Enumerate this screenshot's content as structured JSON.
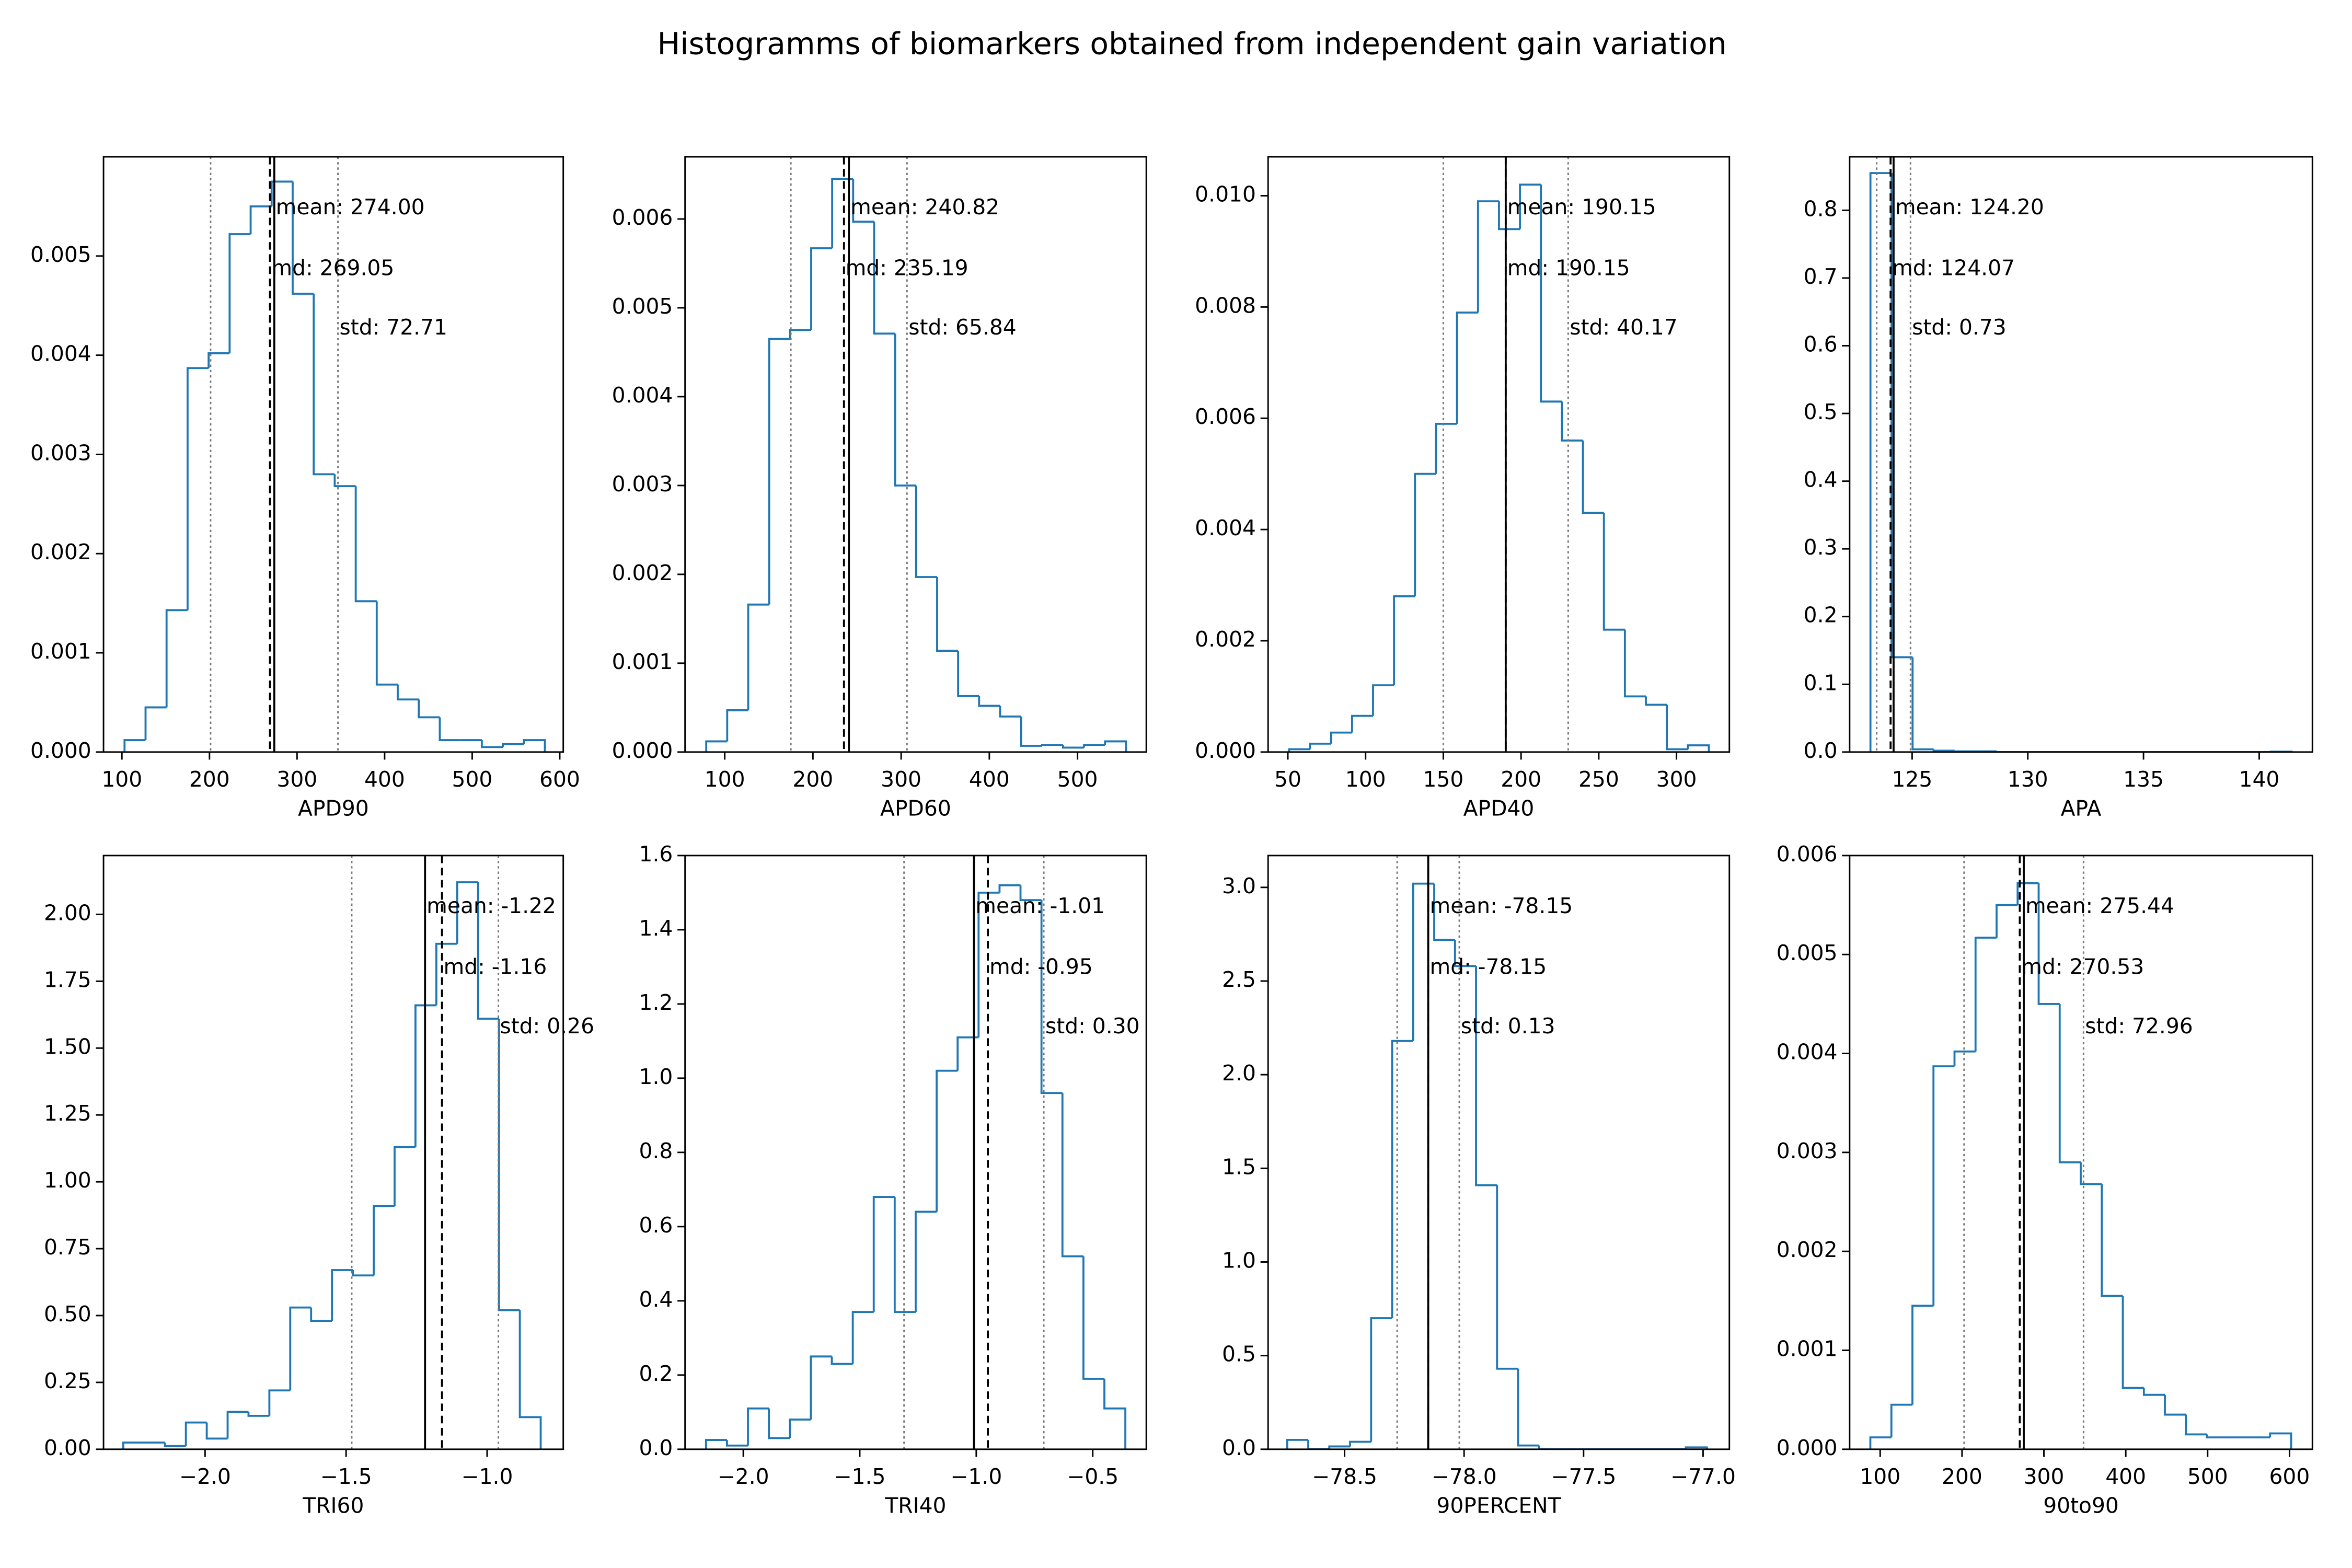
{
  "title": "Histogramms of biomarkers obtained from independent gain variation",
  "chart_data": [
    {
      "type": "histogram",
      "xlabel": "APD90",
      "color": "#1f77b4",
      "bins": [
        103,
        127,
        151,
        175,
        199,
        223,
        247,
        271,
        295,
        319,
        343,
        367,
        391,
        415,
        439,
        463,
        487,
        511,
        535,
        559,
        583
      ],
      "counts": [
        0.00012,
        0.00045,
        0.00143,
        0.00387,
        0.00402,
        0.00522,
        0.0055,
        0.00575,
        0.00462,
        0.0028,
        0.00268,
        0.00152,
        0.00068,
        0.00053,
        0.00035,
        0.00012,
        0.00012,
        5e-05,
        8e-05,
        0.00012
      ],
      "xlim": [
        79,
        604
      ],
      "ylim": [
        0,
        0.006
      ],
      "xticks": [
        100,
        200,
        300,
        400,
        500,
        600
      ],
      "yticks": [
        {
          "value": 0,
          "label": "0.000"
        },
        {
          "value": 0.001,
          "label": "0.001"
        },
        {
          "value": 0.002,
          "label": "0.002"
        },
        {
          "value": 0.003,
          "label": "0.003"
        },
        {
          "value": 0.004,
          "label": "0.004"
        },
        {
          "value": 0.005,
          "label": "0.005"
        }
      ],
      "mean": 274.0,
      "median": 269.05,
      "std": 72.71,
      "annotations": [
        "mean: 274.00",
        "md: 269.05",
        "std: 72.71"
      ]
    },
    {
      "type": "histogram",
      "xlabel": "APD60",
      "color": "#1f77b4",
      "bins": [
        79,
        102.8,
        126.6,
        150.4,
        174.2,
        198,
        221.8,
        245.6,
        269.4,
        293.2,
        317,
        340.8,
        364.6,
        388.4,
        412.2,
        436,
        459.8,
        483.6,
        507.4,
        531.2,
        555
      ],
      "counts": [
        0.00012,
        0.00047,
        0.00166,
        0.00465,
        0.00475,
        0.00567,
        0.00645,
        0.00597,
        0.00471,
        0.003,
        0.00197,
        0.00114,
        0.00063,
        0.00052,
        0.0004,
        7e-05,
        8e-05,
        5e-05,
        8e-05,
        0.00012
      ],
      "xlim": [
        55,
        578
      ],
      "ylim": [
        0,
        0.0067
      ],
      "xticks": [
        100,
        200,
        300,
        400,
        500
      ],
      "yticks": [
        {
          "value": 0,
          "label": "0.000"
        },
        {
          "value": 0.001,
          "label": "0.001"
        },
        {
          "value": 0.002,
          "label": "0.002"
        },
        {
          "value": 0.003,
          "label": "0.003"
        },
        {
          "value": 0.004,
          "label": "0.004"
        },
        {
          "value": 0.005,
          "label": "0.005"
        },
        {
          "value": 0.006,
          "label": "0.006"
        }
      ],
      "mean": 240.82,
      "median": 235.19,
      "std": 65.84,
      "annotations": [
        "mean: 240.82",
        "md: 235.19",
        "std: 65.84"
      ]
    },
    {
      "type": "histogram",
      "xlabel": "APD40",
      "color": "#1f77b4",
      "bins": [
        50.8,
        64.3,
        77.8,
        91.3,
        104.8,
        118.3,
        131.8,
        145.3,
        158.8,
        172.3,
        185.8,
        199.3,
        212.8,
        226.3,
        239.8,
        253.3,
        266.8,
        280.3,
        293.8,
        307.3,
        320.8
      ],
      "counts": [
        5e-05,
        0.00015,
        0.00035,
        0.00065,
        0.0012,
        0.0028,
        0.005,
        0.0059,
        0.0079,
        0.0099,
        0.0094,
        0.0102,
        0.0063,
        0.0056,
        0.0043,
        0.0022,
        0.001,
        0.00085,
        5e-05,
        0.00012
      ],
      "xlim": [
        37.3,
        334
      ],
      "ylim": [
        0,
        0.0107
      ],
      "xticks": [
        50,
        100,
        150,
        200,
        250,
        300
      ],
      "yticks": [
        {
          "value": 0,
          "label": "0.000"
        },
        {
          "value": 0.002,
          "label": "0.002"
        },
        {
          "value": 0.004,
          "label": "0.004"
        },
        {
          "value": 0.006,
          "label": "0.006"
        },
        {
          "value": 0.008,
          "label": "0.008"
        },
        {
          "value": 0.01,
          "label": "0.010"
        }
      ],
      "mean": 190.15,
      "median": 190.15,
      "std": 40.17,
      "annotations": [
        "mean: 190.15",
        "md: 190.15",
        "std: 40.17"
      ]
    },
    {
      "type": "histogram",
      "xlabel": "APA",
      "color": "#1f77b4",
      "bins": [
        123.2,
        124.11,
        125.02,
        125.93,
        126.84,
        127.75,
        128.66,
        129.57,
        130.48,
        131.39,
        132.3,
        133.21,
        134.12,
        135.03,
        135.94,
        136.85,
        137.76,
        138.67,
        139.58,
        140.49,
        141.4
      ],
      "counts": [
        0.855,
        0.14,
        0.004,
        0.002,
        0.001,
        0.001,
        0,
        0,
        0,
        0,
        0,
        0,
        0,
        0,
        0,
        0,
        0,
        0,
        0,
        0.0005
      ],
      "xlim": [
        122.3,
        142.3
      ],
      "ylim": [
        0,
        0.879
      ],
      "xticks": [
        125,
        130,
        135,
        140
      ],
      "yticks": [
        {
          "value": 0,
          "label": "0.0"
        },
        0.1,
        0.2,
        0.3,
        0.4,
        0.5,
        0.6,
        0.7,
        0.8
      ],
      "mean": 124.2,
      "median": 124.07,
      "std": 0.73,
      "annotations": [
        "mean: 124.20",
        "md: 124.07",
        "std: 0.73"
      ]
    },
    {
      "type": "histogram",
      "xlabel": "TRI60",
      "color": "#1f77b4",
      "bins": [
        -2.29,
        -2.216,
        -2.142,
        -2.068,
        -1.994,
        -1.92,
        -1.846,
        -1.772,
        -1.698,
        -1.624,
        -1.55,
        -1.476,
        -1.402,
        -1.328,
        -1.254,
        -1.18,
        -1.106,
        -1.032,
        -0.958,
        -0.884,
        -0.81
      ],
      "counts": [
        0.025,
        0.025,
        0.012,
        0.1,
        0.04,
        0.14,
        0.125,
        0.22,
        0.53,
        0.48,
        0.67,
        0.65,
        0.91,
        1.13,
        1.66,
        1.89,
        2.12,
        1.61,
        0.52,
        0.12
      ],
      "xlim": [
        -2.36,
        -0.73
      ],
      "ylim": [
        0,
        2.22
      ],
      "xticks": [
        {
          "value": -2,
          "label": "−2.0"
        },
        {
          "value": -1.5,
          "label": "−1.5"
        },
        {
          "value": -1,
          "label": "−1.0"
        }
      ],
      "yticks": [
        {
          "value": 0,
          "label": "0.00"
        },
        0.25,
        {
          "value": 0.5,
          "label": "0.50"
        },
        0.75,
        {
          "value": 1,
          "label": "1.00"
        },
        1.25,
        {
          "value": 1.5,
          "label": "1.50"
        },
        1.75,
        {
          "value": 2,
          "label": "2.00"
        }
      ],
      "mean": -1.22,
      "median": -1.16,
      "std": 0.26,
      "annotations": [
        "mean: -1.22",
        "md: -1.16",
        "std: 0.26"
      ]
    },
    {
      "type": "histogram",
      "xlabel": "TRI40",
      "color": "#1f77b4",
      "bins": [
        -2.16,
        -2.07,
        -1.98,
        -1.89,
        -1.8,
        -1.71,
        -1.62,
        -1.53,
        -1.44,
        -1.35,
        -1.26,
        -1.17,
        -1.08,
        -0.99,
        -0.9,
        -0.81,
        -0.72,
        -0.63,
        -0.54,
        -0.45,
        -0.36
      ],
      "counts": [
        0.025,
        0.01,
        0.11,
        0.03,
        0.08,
        0.25,
        0.23,
        0.37,
        0.68,
        0.37,
        0.64,
        1.02,
        1.11,
        1.5,
        1.52,
        1.48,
        0.96,
        0.52,
        0.19,
        0.11
      ],
      "xlim": [
        -2.25,
        -0.27
      ],
      "ylim": [
        0,
        1.6
      ],
      "xticks": [
        {
          "value": -2,
          "label": "−2.0"
        },
        {
          "value": -1.5,
          "label": "−1.5"
        },
        {
          "value": -1,
          "label": "−1.0"
        },
        {
          "value": -0.5,
          "label": "−0.5"
        }
      ],
      "yticks": [
        {
          "value": 0,
          "label": "0.0"
        },
        0.2,
        0.4,
        0.6,
        0.8,
        {
          "value": 1,
          "label": "1.0"
        },
        1.2,
        1.4,
        1.6
      ],
      "mean": -1.01,
      "median": -0.95,
      "std": 0.3,
      "annotations": [
        "mean: -1.01",
        "md: -0.95",
        "std: 0.30"
      ]
    },
    {
      "type": "histogram",
      "xlabel": "90PERCENT",
      "color": "#1f77b4",
      "bins": [
        -78.74,
        -78.652,
        -78.564,
        -78.477,
        -78.389,
        -78.301,
        -78.213,
        -78.125,
        -78.038,
        -77.95,
        -77.862,
        -77.774,
        -77.686,
        -77.599,
        -77.511,
        -77.423,
        -77.335,
        -77.247,
        -77.16,
        -77.072,
        -76.984
      ],
      "counts": [
        0.05,
        0,
        0.015,
        0.04,
        0.7,
        2.18,
        3.02,
        2.72,
        2.58,
        1.41,
        0.43,
        0.02,
        0,
        0,
        0,
        0,
        0,
        0,
        0,
        0.01
      ],
      "xlim": [
        -78.82,
        -76.89
      ],
      "ylim": [
        0,
        3.17
      ],
      "xticks": [
        {
          "value": -78.5,
          "label": "−78.5"
        },
        {
          "value": -78,
          "label": "−78.0"
        },
        {
          "value": -77.5,
          "label": "−77.5"
        },
        {
          "value": -77,
          "label": "−77.0"
        }
      ],
      "yticks": [
        {
          "value": 0,
          "label": "0.0"
        },
        0.5,
        {
          "value": 1,
          "label": "1.0"
        },
        1.5,
        {
          "value": 2,
          "label": "2.0"
        },
        2.5,
        {
          "value": 3,
          "label": "3.0"
        }
      ],
      "mean": -78.15,
      "median": -78.15,
      "std": 0.13,
      "annotations": [
        "mean: -78.15",
        "md: -78.15",
        "std: 0.13"
      ]
    },
    {
      "type": "histogram",
      "xlabel": "90to90",
      "color": "#1f77b4",
      "bins": [
        88,
        113.7,
        139.4,
        165.1,
        190.8,
        216.5,
        242.2,
        267.9,
        293.6,
        319.3,
        345,
        370.7,
        396.4,
        422.1,
        447.8,
        473.5,
        499.2,
        524.9,
        550.6,
        576.3,
        602
      ],
      "counts": [
        0.00012,
        0.00045,
        0.00145,
        0.00387,
        0.00402,
        0.00517,
        0.0055,
        0.00572,
        0.0045,
        0.0029,
        0.00268,
        0.00155,
        0.00062,
        0.00055,
        0.00035,
        0.00015,
        0.00012,
        0.00012,
        0.00012,
        0.00016
      ],
      "xlim": [
        62.7,
        628
      ],
      "ylim": [
        0,
        0.006
      ],
      "xticks": [
        100,
        200,
        300,
        400,
        500,
        600
      ],
      "yticks": [
        {
          "value": 0,
          "label": "0.000"
        },
        {
          "value": 0.001,
          "label": "0.001"
        },
        {
          "value": 0.002,
          "label": "0.002"
        },
        {
          "value": 0.003,
          "label": "0.003"
        },
        {
          "value": 0.004,
          "label": "0.004"
        },
        {
          "value": 0.005,
          "label": "0.005"
        },
        {
          "value": 0.006,
          "label": "0.006"
        }
      ],
      "mean": 275.44,
      "median": 270.53,
      "std": 72.96,
      "annotations": [
        "mean: 275.44",
        "md: 270.53",
        "std: 72.96"
      ]
    }
  ]
}
